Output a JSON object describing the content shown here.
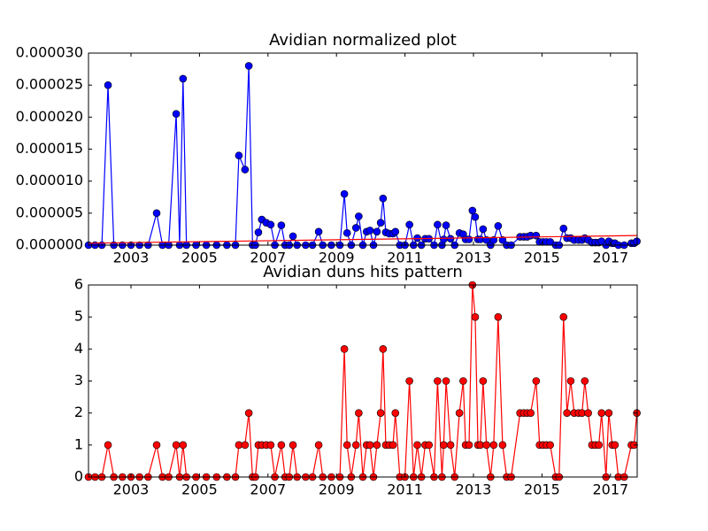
{
  "chart_data": [
    {
      "type": "line",
      "title": "Avidian normalized plot",
      "x": [
        2001.76,
        2001.95,
        2002.15,
        2002.33,
        2002.5,
        2002.75,
        2003.0,
        2003.25,
        2003.5,
        2003.75,
        2003.92,
        2004.1,
        2004.32,
        2004.42,
        2004.52,
        2004.62,
        2004.9,
        2005.2,
        2005.5,
        2005.8,
        2006.05,
        2006.15,
        2006.33,
        2006.44,
        2006.55,
        2006.63,
        2006.72,
        2006.82,
        2006.95,
        2007.08,
        2007.2,
        2007.39,
        2007.5,
        2007.62,
        2007.73,
        2007.85,
        2008.1,
        2008.3,
        2008.48,
        2008.6,
        2008.85,
        2009.1,
        2009.23,
        2009.31,
        2009.43,
        2009.57,
        2009.65,
        2009.77,
        2009.88,
        2009.98,
        2010.08,
        2010.18,
        2010.29,
        2010.36,
        2010.44,
        2010.54,
        2010.65,
        2010.72,
        2010.85,
        2011.0,
        2011.13,
        2011.25,
        2011.36,
        2011.48,
        2011.59,
        2011.7,
        2011.85,
        2011.95,
        2012.08,
        2012.13,
        2012.2,
        2012.33,
        2012.45,
        2012.59,
        2012.7,
        2012.77,
        2012.87,
        2012.97,
        2013.05,
        2013.13,
        2013.2,
        2013.28,
        2013.38,
        2013.5,
        2013.59,
        2013.72,
        2013.85,
        2013.97,
        2014.1,
        2014.36,
        2014.47,
        2014.57,
        2014.67,
        2014.83,
        2014.93,
        2015.03,
        2015.13,
        2015.24,
        2015.4,
        2015.5,
        2015.63,
        2015.73,
        2015.84,
        2015.94,
        2016.07,
        2016.17,
        2016.25,
        2016.35,
        2016.46,
        2016.56,
        2016.66,
        2016.74,
        2016.87,
        2016.95,
        2017.05,
        2017.13,
        2017.23,
        2017.4,
        2017.61,
        2017.69,
        2017.77
      ],
      "series": [
        {
          "color": "#0000ff",
          "marker": "o",
          "values": [
            0,
            0,
            0,
            2.5e-05,
            0,
            0,
            0,
            0,
            0,
            5e-06,
            0,
            0,
            2.05e-05,
            0,
            2.6e-05,
            0,
            0,
            0,
            0,
            0,
            0,
            1.4e-05,
            1.18e-05,
            2.8e-05,
            0,
            0,
            2e-06,
            4e-06,
            3.5e-06,
            3.2e-06,
            0,
            3.1e-06,
            0,
            0,
            1.4e-06,
            0,
            0,
            0,
            2.1e-06,
            0,
            0,
            0,
            8e-06,
            1.9e-06,
            0,
            2.7e-06,
            4.5e-06,
            0,
            2.1e-06,
            2.3e-06,
            0,
            2.1e-06,
            3.5e-06,
            7.3e-06,
            2e-06,
            1.8e-06,
            1.8e-06,
            2.1e-06,
            0,
            0,
            3.2e-06,
            0,
            1.1e-06,
            0,
            1e-06,
            1e-06,
            0,
            3.2e-06,
            0,
            9e-07,
            3.1e-06,
            1e-06,
            0,
            1.9e-06,
            1.7e-06,
            9e-07,
            9e-07,
            5.4e-06,
            4.4e-06,
            9e-07,
            9e-07,
            2.5e-06,
            8e-07,
            0,
            8e-07,
            3e-06,
            8e-07,
            0,
            0,
            1.3e-06,
            1.3e-06,
            1.3e-06,
            1.5e-06,
            1.5e-06,
            5e-07,
            5e-07,
            5e-07,
            5e-07,
            0,
            0,
            2.6e-06,
            1.1e-06,
            1.1e-06,
            8e-07,
            8e-07,
            8e-07,
            1.1e-06,
            8e-07,
            4e-07,
            4e-07,
            4e-07,
            6e-07,
            0,
            6e-07,
            3e-07,
            3e-07,
            0,
            0,
            3e-07,
            3e-07,
            6e-07
          ]
        },
        {
          "color": "#ff0000",
          "x": [
            2001.76,
            2017.78
          ],
          "values": [
            3e-07,
            1.5e-06
          ]
        }
      ],
      "xlim": [
        2001.76,
        2017.78
      ],
      "xticks": [
        2003,
        2005,
        2007,
        2009,
        2011,
        2013,
        2015,
        2017
      ],
      "ylim": [
        0,
        3e-05
      ],
      "yticks": [
        {
          "value": 0,
          "label": "0.000000"
        },
        {
          "value": 5e-06,
          "label": "0.000005"
        },
        {
          "value": 1e-05,
          "label": "0.000010"
        },
        {
          "value": 1.5e-05,
          "label": "0.000015"
        },
        {
          "value": 2e-05,
          "label": "0.000020"
        },
        {
          "value": 2.5e-05,
          "label": "0.000025"
        },
        {
          "value": 3e-05,
          "label": "0.000030"
        }
      ]
    },
    {
      "type": "line",
      "title": "Avidian duns hits pattern",
      "x": [
        2001.76,
        2001.95,
        2002.15,
        2002.33,
        2002.5,
        2002.75,
        2003.0,
        2003.25,
        2003.5,
        2003.75,
        2003.92,
        2004.1,
        2004.32,
        2004.42,
        2004.52,
        2004.62,
        2004.9,
        2005.2,
        2005.5,
        2005.8,
        2006.05,
        2006.15,
        2006.33,
        2006.44,
        2006.55,
        2006.63,
        2006.72,
        2006.82,
        2006.95,
        2007.08,
        2007.2,
        2007.39,
        2007.5,
        2007.62,
        2007.73,
        2007.85,
        2008.1,
        2008.3,
        2008.48,
        2008.6,
        2008.85,
        2009.1,
        2009.23,
        2009.31,
        2009.43,
        2009.57,
        2009.65,
        2009.77,
        2009.88,
        2009.98,
        2010.08,
        2010.18,
        2010.29,
        2010.36,
        2010.44,
        2010.54,
        2010.65,
        2010.72,
        2010.85,
        2011.0,
        2011.13,
        2011.25,
        2011.36,
        2011.48,
        2011.59,
        2011.7,
        2011.85,
        2011.95,
        2012.08,
        2012.13,
        2012.2,
        2012.33,
        2012.45,
        2012.59,
        2012.7,
        2012.77,
        2012.87,
        2012.97,
        2013.05,
        2013.13,
        2013.2,
        2013.28,
        2013.38,
        2013.5,
        2013.59,
        2013.72,
        2013.85,
        2013.97,
        2014.1,
        2014.36,
        2014.47,
        2014.57,
        2014.67,
        2014.83,
        2014.93,
        2015.03,
        2015.13,
        2015.24,
        2015.4,
        2015.5,
        2015.63,
        2015.73,
        2015.84,
        2015.94,
        2016.07,
        2016.17,
        2016.25,
        2016.35,
        2016.46,
        2016.56,
        2016.66,
        2016.74,
        2016.87,
        2016.95,
        2017.05,
        2017.13,
        2017.23,
        2017.4,
        2017.61,
        2017.69,
        2017.77
      ],
      "series": [
        {
          "color": "#ff0000",
          "marker": "o",
          "values": [
            0,
            0,
            0,
            1,
            0,
            0,
            0,
            0,
            0,
            1,
            0,
            0,
            1,
            0,
            1,
            0,
            0,
            0,
            0,
            0,
            0,
            1,
            1,
            2,
            0,
            0,
            1,
            1,
            1,
            1,
            0,
            1,
            0,
            0,
            1,
            0,
            0,
            0,
            1,
            0,
            0,
            0,
            4,
            1,
            0,
            1,
            2,
            0,
            1,
            1,
            0,
            1,
            2,
            4,
            1,
            1,
            1,
            2,
            0,
            0,
            3,
            0,
            1,
            0,
            1,
            1,
            0,
            3,
            0,
            1,
            3,
            1,
            0,
            2,
            3,
            1,
            1,
            6,
            5,
            1,
            1,
            3,
            1,
            0,
            1,
            5,
            1,
            0,
            0,
            2,
            2,
            2,
            2,
            3,
            1,
            1,
            1,
            1,
            0,
            0,
            5,
            2,
            3,
            2,
            2,
            2,
            3,
            2,
            1,
            1,
            1,
            2,
            0,
            2,
            1,
            1,
            0,
            0,
            1,
            1,
            2
          ]
        }
      ],
      "xlim": [
        2001.76,
        2017.78
      ],
      "xticks": [
        2003,
        2005,
        2007,
        2009,
        2011,
        2013,
        2015,
        2017
      ],
      "ylim": [
        0,
        6
      ],
      "yticks": [
        0,
        1,
        2,
        3,
        4,
        5,
        6
      ]
    }
  ]
}
